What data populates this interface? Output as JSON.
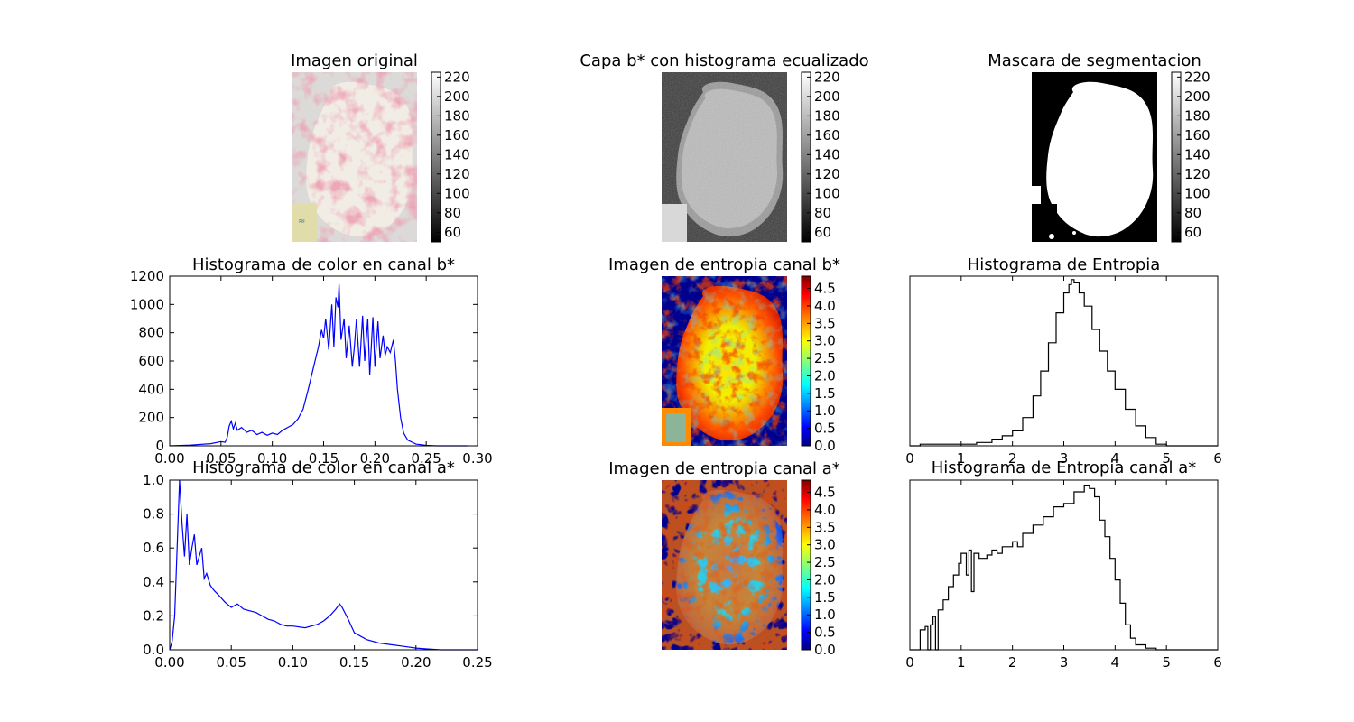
{
  "chart_data": [
    {
      "id": "img_original",
      "type": "image",
      "title": "Imagen original",
      "image_description_icon": "pink-stained-tissue-sample",
      "colorbar": {
        "ticks": [
          "60",
          "80",
          "100",
          "120",
          "140",
          "160",
          "180",
          "200",
          "220"
        ],
        "colormap": "gray",
        "range": [
          50,
          225
        ]
      },
      "colors": {
        "tissue": "#f1ece4",
        "stain": "#df7f90",
        "background": "#dcdad8",
        "label": "#e1ddaa"
      }
    },
    {
      "id": "img_bchannel",
      "type": "image",
      "title": "Capa b* con histograma ecualizado",
      "image_description_icon": "grayscale-tissue",
      "colorbar": {
        "ticks": [
          "60",
          "80",
          "100",
          "120",
          "140",
          "160",
          "180",
          "200",
          "220"
        ],
        "colormap": "gray",
        "range": [
          50,
          225
        ]
      }
    },
    {
      "id": "img_mask",
      "type": "image",
      "title": "Mascara de segmentacion",
      "image_description_icon": "binary-mask",
      "colorbar": {
        "ticks": [
          "60",
          "80",
          "100",
          "120",
          "140",
          "160",
          "180",
          "200",
          "220"
        ],
        "colormap": "gray",
        "range": [
          50,
          225
        ]
      }
    },
    {
      "id": "hist_b",
      "type": "line",
      "title": "Histograma de color en canal b*",
      "xlabel": "",
      "ylabel": "",
      "xlim": [
        0,
        0.3
      ],
      "ylim": [
        0,
        1200
      ],
      "xticks": [
        "0.00",
        "0.05",
        "0.10",
        "0.15",
        "0.20",
        "0.25",
        "0.30"
      ],
      "yticks": [
        "0",
        "200",
        "400",
        "600",
        "800",
        "1000",
        "1200"
      ],
      "color": "#0000ff",
      "series": [
        {
          "values": [
            [
              0,
              0
            ],
            [
              0.02,
              5
            ],
            [
              0.04,
              15
            ],
            [
              0.05,
              30
            ],
            [
              0.054,
              25
            ],
            [
              0.056,
              60
            ],
            [
              0.058,
              140
            ],
            [
              0.06,
              175
            ],
            [
              0.062,
              120
            ],
            [
              0.064,
              160
            ],
            [
              0.066,
              110
            ],
            [
              0.07,
              130
            ],
            [
              0.075,
              95
            ],
            [
              0.08,
              110
            ],
            [
              0.085,
              80
            ],
            [
              0.09,
              95
            ],
            [
              0.095,
              75
            ],
            [
              0.1,
              90
            ],
            [
              0.105,
              80
            ],
            [
              0.11,
              110
            ],
            [
              0.115,
              130
            ],
            [
              0.12,
              150
            ],
            [
              0.125,
              190
            ],
            [
              0.13,
              260
            ],
            [
              0.135,
              400
            ],
            [
              0.14,
              550
            ],
            [
              0.145,
              700
            ],
            [
              0.148,
              820
            ],
            [
              0.15,
              760
            ],
            [
              0.152,
              900
            ],
            [
              0.155,
              680
            ],
            [
              0.158,
              1000
            ],
            [
              0.16,
              700
            ],
            [
              0.162,
              1050
            ],
            [
              0.164,
              980
            ],
            [
              0.165,
              1145
            ],
            [
              0.167,
              750
            ],
            [
              0.17,
              900
            ],
            [
              0.172,
              620
            ],
            [
              0.175,
              850
            ],
            [
              0.178,
              560
            ],
            [
              0.18,
              700
            ],
            [
              0.182,
              900
            ],
            [
              0.185,
              560
            ],
            [
              0.188,
              920
            ],
            [
              0.19,
              600
            ],
            [
              0.193,
              900
            ],
            [
              0.195,
              500
            ],
            [
              0.198,
              910
            ],
            [
              0.2,
              560
            ],
            [
              0.203,
              880
            ],
            [
              0.205,
              620
            ],
            [
              0.208,
              780
            ],
            [
              0.21,
              640
            ],
            [
              0.212,
              700
            ],
            [
              0.215,
              660
            ],
            [
              0.218,
              750
            ],
            [
              0.22,
              600
            ],
            [
              0.222,
              400
            ],
            [
              0.225,
              200
            ],
            [
              0.228,
              90
            ],
            [
              0.232,
              40
            ],
            [
              0.24,
              12
            ],
            [
              0.25,
              3
            ],
            [
              0.26,
              0
            ],
            [
              0.29,
              0
            ]
          ]
        }
      ]
    },
    {
      "id": "img_entropy_b",
      "type": "heatmap",
      "title": "Imagen de entropia canal b*",
      "colorbar": {
        "ticks": [
          "0.0",
          "0.5",
          "1.0",
          "1.5",
          "2.0",
          "2.5",
          "3.0",
          "3.5",
          "4.0",
          "4.5"
        ],
        "colormap": "jet",
        "range": [
          0,
          4.85
        ]
      }
    },
    {
      "id": "hist_entropy",
      "type": "line",
      "title": "Histograma de Entropia",
      "xlabel": "",
      "ylabel": "",
      "xlim": [
        0,
        6
      ],
      "xticks": [
        "0",
        "1",
        "2",
        "3",
        "4",
        "5",
        "6"
      ],
      "yticks": [],
      "color": "#000000",
      "series": [
        {
          "values": [
            [
              0,
              0
            ],
            [
              0.2,
              0.01
            ],
            [
              0.5,
              0.01
            ],
            [
              1.0,
              0.01
            ],
            [
              1.3,
              0.02
            ],
            [
              1.6,
              0.04
            ],
            [
              1.8,
              0.06
            ],
            [
              2.0,
              0.09
            ],
            [
              2.2,
              0.17
            ],
            [
              2.4,
              0.3
            ],
            [
              2.55,
              0.45
            ],
            [
              2.7,
              0.62
            ],
            [
              2.85,
              0.8
            ],
            [
              3.0,
              0.92
            ],
            [
              3.1,
              0.97
            ],
            [
              3.15,
              1.0
            ],
            [
              3.2,
              0.98
            ],
            [
              3.3,
              0.92
            ],
            [
              3.4,
              0.84
            ],
            [
              3.55,
              0.7
            ],
            [
              3.7,
              0.57
            ],
            [
              3.85,
              0.45
            ],
            [
              4.0,
              0.34
            ],
            [
              4.2,
              0.22
            ],
            [
              4.4,
              0.12
            ],
            [
              4.6,
              0.05
            ],
            [
              4.8,
              0.01
            ],
            [
              5.0,
              0
            ],
            [
              6.0,
              0
            ]
          ]
        }
      ]
    },
    {
      "id": "hist_a",
      "type": "line",
      "title": "Histograma de color en canal a*",
      "xlabel": "",
      "ylabel": "",
      "xlim": [
        0,
        0.25
      ],
      "ylim": [
        0,
        1.0
      ],
      "xticks": [
        "0.00",
        "0.05",
        "0.10",
        "0.15",
        "0.20",
        "0.25"
      ],
      "yticks": [
        "0.0",
        "0.2",
        "0.4",
        "0.6",
        "0.8",
        "1.0"
      ],
      "color": "#0000ff",
      "series": [
        {
          "values": [
            [
              0,
              0
            ],
            [
              0.002,
              0.05
            ],
            [
              0.004,
              0.2
            ],
            [
              0.006,
              0.6
            ],
            [
              0.008,
              1.0
            ],
            [
              0.01,
              0.75
            ],
            [
              0.012,
              0.55
            ],
            [
              0.014,
              0.8
            ],
            [
              0.016,
              0.5
            ],
            [
              0.018,
              0.6
            ],
            [
              0.02,
              0.68
            ],
            [
              0.022,
              0.5
            ],
            [
              0.024,
              0.55
            ],
            [
              0.026,
              0.6
            ],
            [
              0.028,
              0.42
            ],
            [
              0.03,
              0.45
            ],
            [
              0.033,
              0.38
            ],
            [
              0.036,
              0.35
            ],
            [
              0.04,
              0.32
            ],
            [
              0.045,
              0.28
            ],
            [
              0.05,
              0.25
            ],
            [
              0.055,
              0.27
            ],
            [
              0.06,
              0.24
            ],
            [
              0.065,
              0.23
            ],
            [
              0.07,
              0.22
            ],
            [
              0.075,
              0.2
            ],
            [
              0.08,
              0.18
            ],
            [
              0.085,
              0.17
            ],
            [
              0.09,
              0.15
            ],
            [
              0.095,
              0.14
            ],
            [
              0.1,
              0.14
            ],
            [
              0.11,
              0.13
            ],
            [
              0.12,
              0.15
            ],
            [
              0.125,
              0.17
            ],
            [
              0.13,
              0.2
            ],
            [
              0.135,
              0.24
            ],
            [
              0.138,
              0.27
            ],
            [
              0.14,
              0.25
            ],
            [
              0.145,
              0.18
            ],
            [
              0.15,
              0.1
            ],
            [
              0.16,
              0.06
            ],
            [
              0.17,
              0.04
            ],
            [
              0.18,
              0.03
            ],
            [
              0.19,
              0.02
            ],
            [
              0.2,
              0.01
            ],
            [
              0.21,
              0.005
            ],
            [
              0.22,
              0
            ],
            [
              0.25,
              0
            ]
          ]
        }
      ]
    },
    {
      "id": "img_entropy_a",
      "type": "heatmap",
      "title": "Imagen de entropia canal a*",
      "colorbar": {
        "ticks": [
          "0.0",
          "0.5",
          "1.0",
          "1.5",
          "2.0",
          "2.5",
          "3.0",
          "3.5",
          "4.0",
          "4.5"
        ],
        "colormap": "jet",
        "range": [
          0,
          4.85
        ]
      }
    },
    {
      "id": "hist_entropy_a",
      "type": "line",
      "title": "Histograma de Entropia canal a*",
      "xlabel": "",
      "ylabel": "",
      "xlim": [
        0,
        6
      ],
      "xticks": [
        "0",
        "1",
        "2",
        "3",
        "4",
        "5",
        "6"
      ],
      "yticks": [],
      "color": "#000000",
      "series": [
        {
          "values": [
            [
              0,
              0
            ],
            [
              0.15,
              0
            ],
            [
              0.2,
              0.12
            ],
            [
              0.3,
              0.14
            ],
            [
              0.35,
              0
            ],
            [
              0.4,
              0.15
            ],
            [
              0.45,
              0.2
            ],
            [
              0.5,
              0
            ],
            [
              0.55,
              0.24
            ],
            [
              0.65,
              0.3
            ],
            [
              0.75,
              0.38
            ],
            [
              0.85,
              0.45
            ],
            [
              0.95,
              0.52
            ],
            [
              1.0,
              0.58
            ],
            [
              1.1,
              0.45
            ],
            [
              1.15,
              0.6
            ],
            [
              1.2,
              0.35
            ],
            [
              1.25,
              0.58
            ],
            [
              1.35,
              0.55
            ],
            [
              1.5,
              0.57
            ],
            [
              1.6,
              0.6
            ],
            [
              1.7,
              0.58
            ],
            [
              1.8,
              0.62
            ],
            [
              2.0,
              0.65
            ],
            [
              2.1,
              0.62
            ],
            [
              2.2,
              0.7
            ],
            [
              2.4,
              0.75
            ],
            [
              2.6,
              0.8
            ],
            [
              2.8,
              0.86
            ],
            [
              3.0,
              0.88
            ],
            [
              3.2,
              0.95
            ],
            [
              3.4,
              0.99
            ],
            [
              3.5,
              0.97
            ],
            [
              3.6,
              0.92
            ],
            [
              3.7,
              0.78
            ],
            [
              3.8,
              0.68
            ],
            [
              3.9,
              0.55
            ],
            [
              4.0,
              0.42
            ],
            [
              4.1,
              0.28
            ],
            [
              4.2,
              0.15
            ],
            [
              4.3,
              0.07
            ],
            [
              4.4,
              0.03
            ],
            [
              4.6,
              0.01
            ],
            [
              4.8,
              0
            ],
            [
              6,
              0
            ]
          ]
        }
      ]
    }
  ]
}
